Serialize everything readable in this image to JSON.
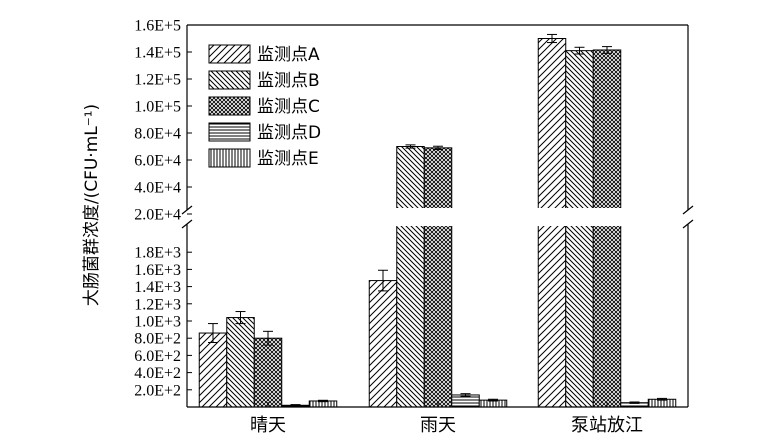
{
  "chart_data": {
    "type": "bar",
    "ylabel": "大肠菌群浓度/(CFU·mL⁻¹)",
    "categories": [
      "晴天",
      "雨天",
      "泵站放江"
    ],
    "series": [
      {
        "name": "监测点A",
        "pattern": "diag-right",
        "values": [
          860,
          1470,
          150000
        ],
        "errors": [
          110,
          120,
          3000
        ]
      },
      {
        "name": "监测点B",
        "pattern": "diag-left",
        "values": [
          1040,
          70000,
          141000
        ],
        "errors": [
          70,
          1200,
          2500
        ]
      },
      {
        "name": "监测点C",
        "pattern": "cross",
        "values": [
          800,
          69000,
          141500
        ],
        "errors": [
          80,
          1200,
          2500
        ]
      },
      {
        "name": "监测点D",
        "pattern": "horizontal",
        "values": [
          20,
          140,
          50
        ],
        "errors": [
          8,
          15,
          8
        ]
      },
      {
        "name": "监测点E",
        "pattern": "vertical",
        "values": [
          70,
          80,
          90
        ],
        "errors": [
          8,
          10,
          10
        ]
      }
    ],
    "axis_break": {
      "low_range": [
        0,
        2000
      ],
      "high_range": [
        20000,
        160000
      ]
    },
    "yticks_low": [
      "2.0E+2",
      "4.0E+2",
      "6.0E+2",
      "8.0E+2",
      "1.0E+3",
      "1.2E+3",
      "1.4E+3",
      "1.6E+3",
      "1.8E+3"
    ],
    "yticks_high": [
      "2.0E+4",
      "4.0E+4",
      "6.0E+4",
      "8.0E+4",
      "1.0E+5",
      "1.2E+5",
      "1.4E+5",
      "1.6E+5"
    ],
    "legend_position": "top-left",
    "grid": false
  }
}
